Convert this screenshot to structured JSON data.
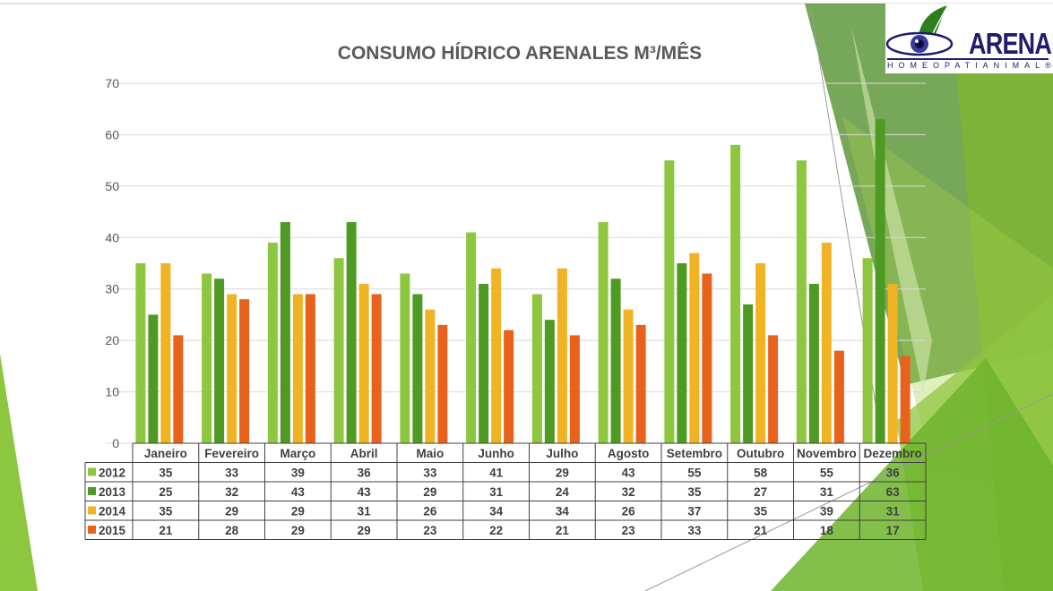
{
  "title": "CONSUMO HÍDRICO ARENALES M³/MÊS",
  "logo": {
    "word": "ARENALES",
    "subtitle": "HOMEOPATIANIMAL®"
  },
  "colors": {
    "2012": "#8dc63f",
    "2013": "#4f9a22",
    "2014": "#f0b323",
    "2015": "#e8621c",
    "accent_light": "#a9d04a",
    "accent_dark": "#4a8a20",
    "logo_navy": "#1f1b6e"
  },
  "chart_data": {
    "type": "bar",
    "title": "CONSUMO HÍDRICO ARENALES M³/MÊS",
    "categories": [
      "Janeiro",
      "Fevereiro",
      "Março",
      "Abril",
      "Maio",
      "Junho",
      "Julho",
      "Agosto",
      "Setembro",
      "Outubro",
      "Novembro",
      "Dezembro"
    ],
    "series": [
      {
        "name": "2012",
        "values": [
          35,
          33,
          39,
          36,
          33,
          41,
          29,
          43,
          55,
          58,
          55,
          36
        ]
      },
      {
        "name": "2013",
        "values": [
          25,
          32,
          43,
          43,
          29,
          31,
          24,
          32,
          35,
          27,
          31,
          63
        ]
      },
      {
        "name": "2014",
        "values": [
          35,
          29,
          29,
          31,
          26,
          34,
          34,
          26,
          37,
          35,
          39,
          31
        ]
      },
      {
        "name": "2015",
        "values": [
          21,
          28,
          29,
          29,
          23,
          22,
          21,
          23,
          33,
          21,
          18,
          17
        ]
      }
    ],
    "ylim": [
      0,
      70
    ],
    "yticks": [
      0,
      10,
      20,
      30,
      40,
      50,
      60,
      70
    ],
    "grid": true,
    "legend": "data-table-below"
  }
}
